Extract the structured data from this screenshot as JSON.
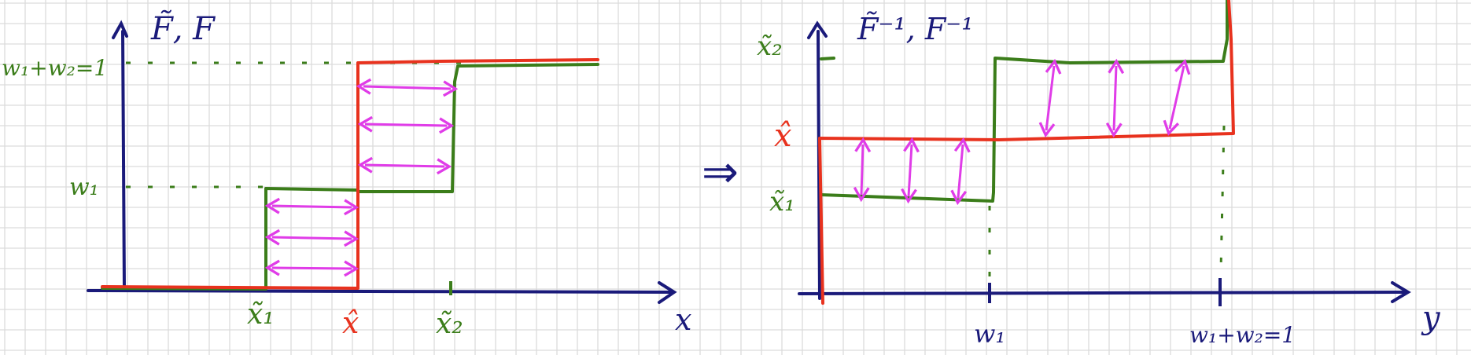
{
  "colors": {
    "axis": "#1a1a7a",
    "green": "#3b7d1a",
    "red": "#e8321e",
    "magenta": "#e03ce8",
    "grid": "#dcdcdc"
  },
  "left_plot": {
    "title": "F̃, F",
    "y_top_label": "w₁+w₂=1",
    "y_mid_label": "w₁",
    "x_axis_label": "x",
    "x_tick_1": "x̃₁",
    "x_tick_hat": "x̂",
    "x_tick_2": "x̃₂"
  },
  "arrow_symbol": "⇒",
  "right_plot": {
    "title": "F̃⁻¹, F⁻¹",
    "y_top_label": "x̃₂",
    "y_hat_label": "x̂",
    "y_low_label": "x̃₁",
    "x_axis_label": "y",
    "x_tick_1": "w₁",
    "x_tick_2": "w₁+w₂=1"
  }
}
